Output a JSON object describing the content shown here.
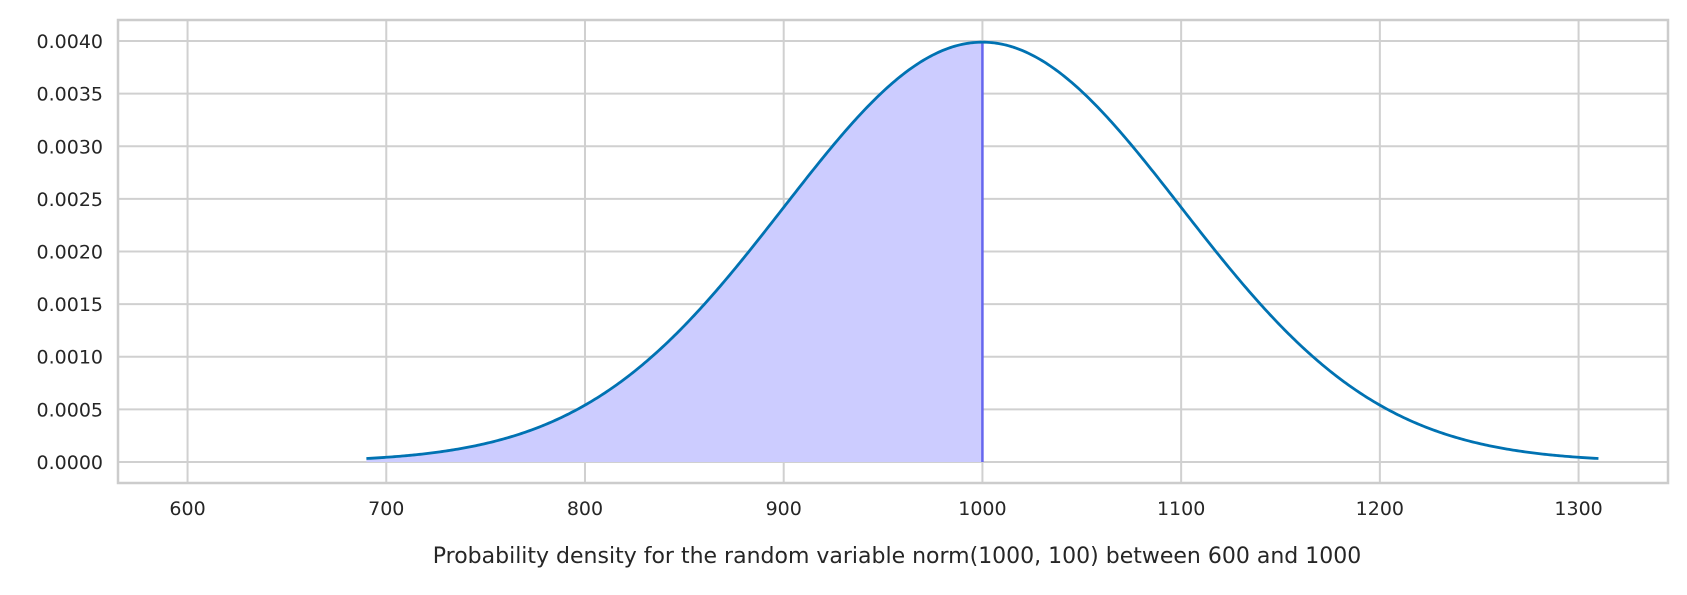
{
  "chart_data": {
    "type": "area",
    "title": "",
    "xlabel": "Probability density for the random variable norm(1000, 100) between 600 and 1000",
    "ylabel": "",
    "xlim": [
      565,
      1345
    ],
    "ylim": [
      -0.0002,
      0.0042
    ],
    "xticks": [
      600,
      700,
      800,
      900,
      1000,
      1100,
      1200,
      1300
    ],
    "xtick_labels": [
      "600",
      "700",
      "800",
      "900",
      "1000",
      "1100",
      "1200",
      "1300"
    ],
    "yticks": [
      0.0,
      0.0005,
      0.001,
      0.0015,
      0.002,
      0.0025,
      0.003,
      0.0035,
      0.004
    ],
    "ytick_labels": [
      "0.0000",
      "0.0005",
      "0.0010",
      "0.0015",
      "0.0020",
      "0.0025",
      "0.0030",
      "0.0035",
      "0.0040"
    ],
    "grid": true,
    "series": [
      {
        "distribution": "normal",
        "mean": 1000,
        "std": 100,
        "x_range": [
          690,
          1310
        ],
        "color": "#0072B2",
        "values": [
          {
            "x": 700,
            "y": 4.43e-05
          },
          {
            "x": 750,
            "y": 0.0001753
          },
          {
            "x": 800,
            "y": 0.00054
          },
          {
            "x": 850,
            "y": 0.0012952
          },
          {
            "x": 900,
            "y": 0.0024197
          },
          {
            "x": 950,
            "y": 0.0035207
          },
          {
            "x": 1000,
            "y": 0.0039894
          },
          {
            "x": 1050,
            "y": 0.0035207
          },
          {
            "x": 1100,
            "y": 0.0024197
          },
          {
            "x": 1150,
            "y": 0.0012952
          },
          {
            "x": 1200,
            "y": 0.00054
          },
          {
            "x": 1250,
            "y": 0.0001753
          },
          {
            "x": 1300,
            "y": 4.43e-05
          }
        ]
      }
    ],
    "shaded_region": {
      "x_from": 600,
      "x_to": 1000,
      "fill": "#CCCCFF",
      "edge": "#6666EE"
    },
    "colors": {
      "grid": "#D0D0D0",
      "frame": "#CCCCCC",
      "text": "#262626"
    }
  }
}
